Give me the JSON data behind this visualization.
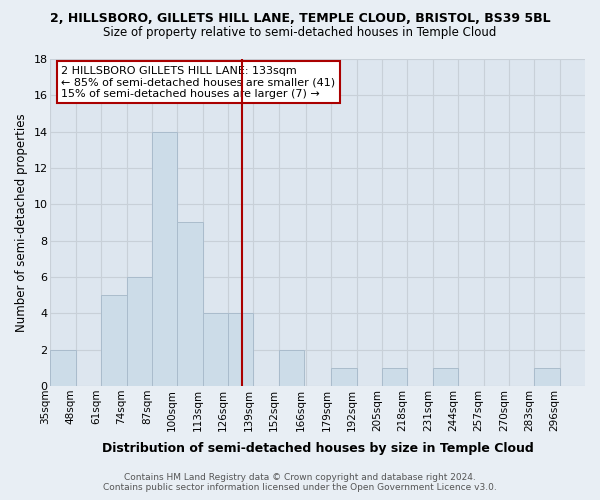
{
  "title_line1": "2, HILLSBORO, GILLETS HILL LANE, TEMPLE CLOUD, BRISTOL, BS39 5BL",
  "title_line2": "Size of property relative to semi-detached houses in Temple Cloud",
  "xlabel": "Distribution of semi-detached houses by size in Temple Cloud",
  "ylabel": "Number of semi-detached properties",
  "bin_labels": [
    "35sqm",
    "48sqm",
    "61sqm",
    "74sqm",
    "87sqm",
    "100sqm",
    "113sqm",
    "126sqm",
    "139sqm",
    "152sqm",
    "166sqm",
    "179sqm",
    "192sqm",
    "205sqm",
    "218sqm",
    "231sqm",
    "244sqm",
    "257sqm",
    "270sqm",
    "283sqm",
    "296sqm"
  ],
  "bin_edges": [
    35,
    48,
    61,
    74,
    87,
    100,
    113,
    126,
    139,
    152,
    166,
    179,
    192,
    205,
    218,
    231,
    244,
    257,
    270,
    283,
    296
  ],
  "counts": [
    2,
    0,
    5,
    6,
    14,
    9,
    4,
    4,
    0,
    2,
    0,
    1,
    0,
    1,
    0,
    1,
    0,
    0,
    0,
    1,
    0
  ],
  "bar_color": "#ccdce8",
  "bar_edge_color": "#aabccc",
  "vline_x": 133,
  "vline_color": "#aa0000",
  "annotation_title": "2 HILLSBORO GILLETS HILL LANE: 133sqm",
  "annotation_line2": "← 85% of semi-detached houses are smaller (41)",
  "annotation_line3": "15% of semi-detached houses are larger (7) →",
  "ylim": [
    0,
    18
  ],
  "yticks": [
    0,
    2,
    4,
    6,
    8,
    10,
    12,
    14,
    16,
    18
  ],
  "footer_line1": "Contains HM Land Registry data © Crown copyright and database right 2024.",
  "footer_line2": "Contains public sector information licensed under the Open Government Licence v3.0.",
  "background_color": "#e8eef4",
  "grid_color": "#c8d0d8",
  "plot_bg_color": "#dde6ef"
}
